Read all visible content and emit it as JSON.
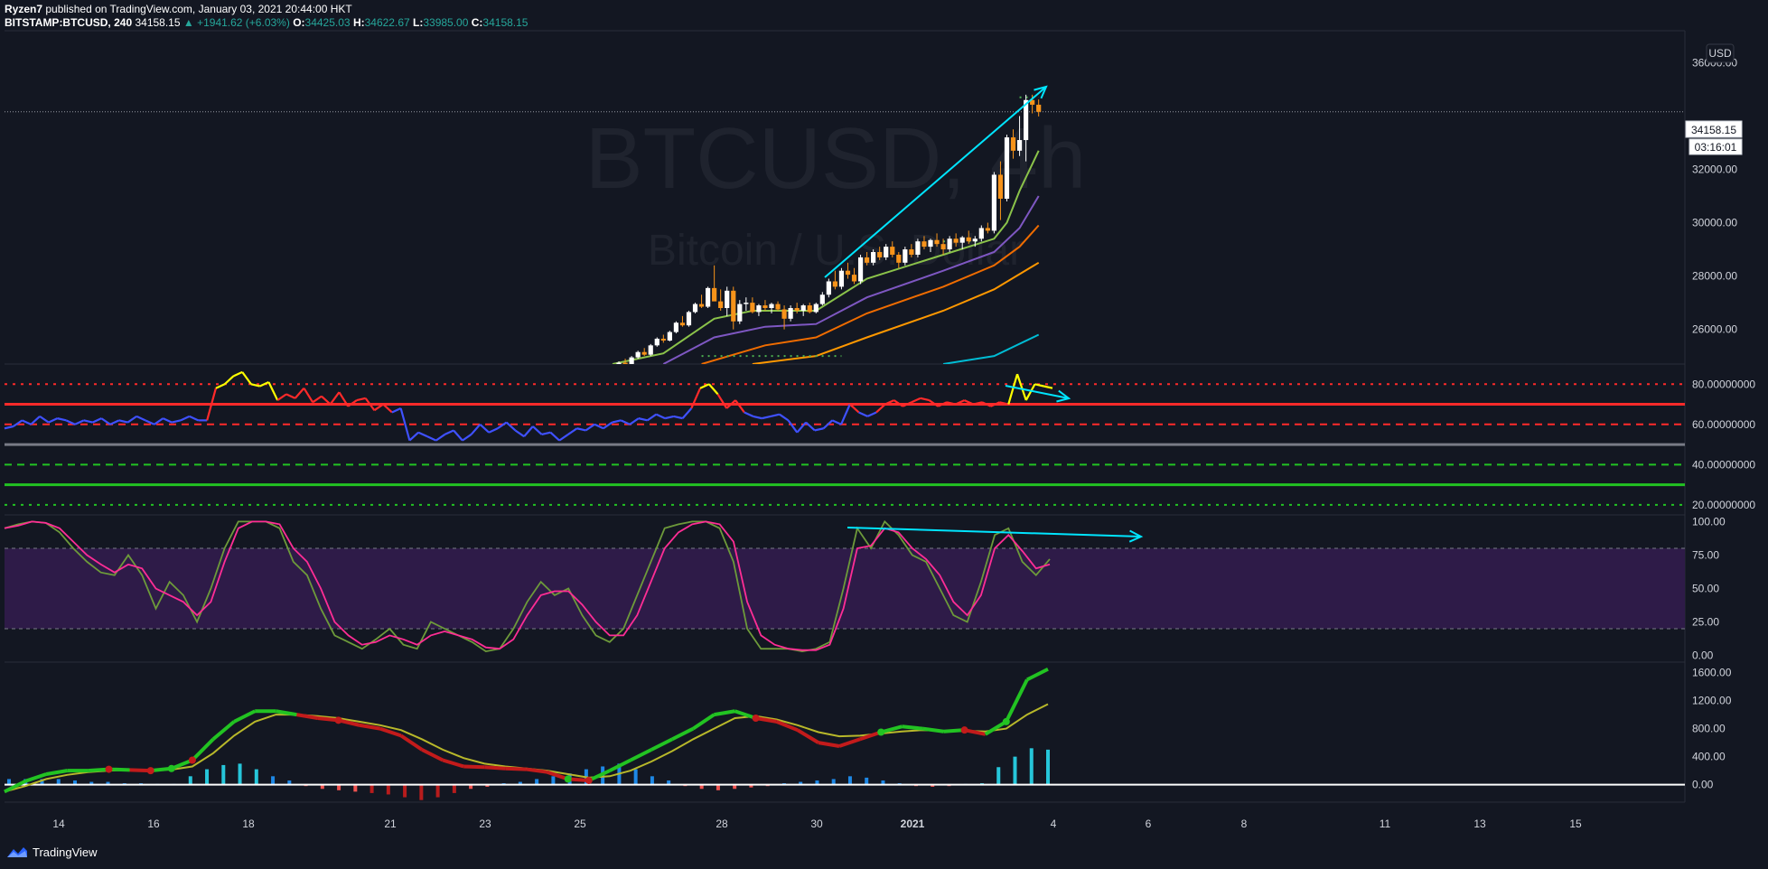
{
  "header": {
    "author": "Ryzen7",
    "published": "published on TradingView.com, January 03, 2021 20:44:00 HKT",
    "symbol": "BITSTAMP:BTCUSD, 240",
    "last": "34158.15",
    "change": "▲ +1941.62 (+6.03%)",
    "o_label": "O:",
    "o": "34425.03",
    "h_label": "H:",
    "h": "34622.67",
    "l_label": "L:",
    "l": "33985.00",
    "c_label": "C:",
    "c": "34158.15"
  },
  "watermark": {
    "symbol": "BTCUSD, 4h",
    "name": "Bitcoin / U.S. Dollar"
  },
  "currency_button": "USD",
  "price_tag": "34158.15",
  "countdown": "03:16:01",
  "footer": {
    "brand": "TradingView"
  },
  "colors": {
    "background": "#131722",
    "up_candle": "#ffffff",
    "down_candle": "#f7931a",
    "ema1": "#8bc34a",
    "ema2": "#7e57c2",
    "ema3": "#ef6c00",
    "ema4": "#ff9800",
    "ema5": "#00bcd4",
    "rsi_blue": "#3f51ff",
    "rsi_red": "#ff2a2a",
    "rsi_yellow": "#ffff00",
    "stoch_k": "#6d9a3a",
    "stoch_d": "#ff2d95",
    "stoch_band": "#2e1b48",
    "macd_green": "#22c322",
    "macd_red": "#c31b1b",
    "signal": "#b8b82a",
    "annotation": "#00e5ff"
  },
  "chart_data": [
    {
      "type": "candlestick",
      "title": "BITSTAMP:BTCUSD, 240",
      "x_ticks": [
        "14",
        "16",
        "18",
        "21",
        "23",
        "25",
        "28",
        "30",
        "2021",
        "4",
        "6",
        "8",
        "11",
        "13",
        "15"
      ],
      "y_ticks": [
        "26000.00",
        "28000.00",
        "30000.00",
        "32000.00",
        "34000.00",
        "36000.00"
      ],
      "ylim": [
        24700,
        37200
      ],
      "last_price": 34158.15,
      "bars": [
        [
          24500,
          24620,
          24350,
          24560
        ],
        [
          24560,
          24800,
          24500,
          24750
        ],
        [
          24750,
          24900,
          24600,
          24680
        ],
        [
          24680,
          25000,
          24650,
          24950
        ],
        [
          24950,
          25200,
          24900,
          25150
        ],
        [
          25150,
          25300,
          25000,
          25050
        ],
        [
          25050,
          25450,
          25000,
          25400
        ],
        [
          25400,
          25700,
          25350,
          25650
        ],
        [
          25650,
          25800,
          25500,
          25580
        ],
        [
          25580,
          25950,
          25550,
          25900
        ],
        [
          25900,
          26300,
          25850,
          26250
        ],
        [
          26250,
          26500,
          26100,
          26150
        ],
        [
          26150,
          26700,
          26100,
          26650
        ],
        [
          26650,
          27000,
          26600,
          26950
        ],
        [
          26950,
          27300,
          26800,
          26850
        ],
        [
          26850,
          27600,
          26800,
          27550
        ],
        [
          27550,
          28400,
          27300,
          27050
        ],
        [
          27050,
          27500,
          26700,
          26800
        ],
        [
          26800,
          27600,
          26500,
          27450
        ],
        [
          27450,
          27600,
          26000,
          26300
        ],
        [
          26300,
          27100,
          26200,
          26950
        ],
        [
          26950,
          27200,
          26700,
          27000
        ],
        [
          27000,
          27200,
          26600,
          26650
        ],
        [
          26650,
          26950,
          26500,
          26900
        ],
        [
          26900,
          27100,
          26700,
          26800
        ],
        [
          26800,
          27000,
          26600,
          26950
        ],
        [
          26950,
          27050,
          26700,
          26750
        ],
        [
          26750,
          26900,
          26000,
          26400
        ],
        [
          26400,
          26900,
          26300,
          26800
        ],
        [
          26800,
          27000,
          26600,
          26700
        ],
        [
          26700,
          26950,
          26500,
          26900
        ],
        [
          26900,
          27000,
          26600,
          26650
        ],
        [
          26650,
          27000,
          26600,
          26950
        ],
        [
          26950,
          27400,
          26900,
          27300
        ],
        [
          27300,
          27900,
          27200,
          27800
        ],
        [
          27800,
          28200,
          27500,
          27600
        ],
        [
          27600,
          28300,
          27500,
          28200
        ],
        [
          28200,
          28500,
          27900,
          28050
        ],
        [
          28050,
          28300,
          27700,
          27800
        ],
        [
          27800,
          28800,
          27700,
          28700
        ],
        [
          28700,
          28900,
          28400,
          28500
        ],
        [
          28500,
          29000,
          28400,
          28900
        ],
        [
          28900,
          29100,
          28600,
          28700
        ],
        [
          28700,
          29200,
          28600,
          29100
        ],
        [
          29100,
          29300,
          28700,
          28800
        ],
        [
          28800,
          28900,
          28300,
          28500
        ],
        [
          28500,
          29100,
          28400,
          29000
        ],
        [
          29000,
          29200,
          28700,
          28800
        ],
        [
          28800,
          29400,
          28700,
          29300
        ],
        [
          29300,
          29500,
          29000,
          29100
        ],
        [
          29100,
          29400,
          28900,
          29350
        ],
        [
          29350,
          29600,
          29100,
          29200
        ],
        [
          29200,
          29400,
          28800,
          29000
        ],
        [
          29000,
          29500,
          28900,
          29400
        ],
        [
          29400,
          29600,
          29100,
          29250
        ],
        [
          29250,
          29500,
          29000,
          29450
        ],
        [
          29450,
          29700,
          29200,
          29300
        ],
        [
          29300,
          29500,
          29100,
          29400
        ],
        [
          29400,
          29900,
          29300,
          29800
        ],
        [
          29800,
          30000,
          29600,
          29700
        ],
        [
          29700,
          31900,
          29600,
          31800
        ],
        [
          31800,
          32300,
          30100,
          30900
        ],
        [
          30900,
          33300,
          30800,
          33200
        ],
        [
          33200,
          33500,
          32400,
          32700
        ],
        [
          32700,
          34000,
          32500,
          33100
        ],
        [
          33100,
          34800,
          32300,
          34600
        ],
        [
          34600,
          34800,
          34100,
          34425
        ],
        [
          34425,
          34622,
          33985,
          34158
        ]
      ],
      "ema_lines": [
        {
          "name": "EMA 1",
          "color": "#8bc34a",
          "values": [
            [
              0,
              24700
            ],
            [
              8,
              25100
            ],
            [
              16,
              26400
            ],
            [
              22,
              26700
            ],
            [
              32,
              26700
            ],
            [
              40,
              27900
            ],
            [
              52,
              28800
            ],
            [
              60,
              29400
            ],
            [
              62,
              30000
            ],
            [
              64,
              31200
            ],
            [
              67,
              32700
            ]
          ]
        },
        {
          "name": "EMA 2",
          "color": "#7e57c2",
          "values": [
            [
              8,
              24700
            ],
            [
              16,
              25700
            ],
            [
              24,
              26100
            ],
            [
              32,
              26200
            ],
            [
              40,
              27200
            ],
            [
              52,
              28200
            ],
            [
              60,
              28900
            ],
            [
              64,
              29800
            ],
            [
              67,
              31000
            ]
          ]
        },
        {
          "name": "EMA 3",
          "color": "#ef6c00",
          "values": [
            [
              14,
              24700
            ],
            [
              24,
              25400
            ],
            [
              32,
              25700
            ],
            [
              40,
              26600
            ],
            [
              52,
              27600
            ],
            [
              60,
              28400
            ],
            [
              64,
              29100
            ],
            [
              67,
              29900
            ]
          ]
        },
        {
          "name": "EMA 4",
          "color": "#ff9800",
          "values": [
            [
              22,
              24700
            ],
            [
              32,
              25000
            ],
            [
              40,
              25700
            ],
            [
              52,
              26700
            ],
            [
              60,
              27500
            ],
            [
              67,
              28500
            ]
          ]
        },
        {
          "name": "EMA 5",
          "color": "#00bcd4",
          "values": [
            [
              52,
              24700
            ],
            [
              60,
              25000
            ],
            [
              67,
              25800
            ]
          ]
        }
      ],
      "dotted_levels": [
        {
          "price": 25000,
          "from": 14,
          "to": 36,
          "color": "#4caf50"
        },
        {
          "price": 29300,
          "from": 52,
          "to": 58,
          "color": "#4caf50"
        },
        {
          "price": 34700,
          "from": 64,
          "to": 67,
          "color": "#4caf50"
        }
      ]
    },
    {
      "type": "line",
      "title": "RSI",
      "y_ticks": [
        "20.00000000",
        "40.00000000",
        "60.00000000",
        "80.00000000"
      ],
      "ylim": [
        15,
        90
      ],
      "levels": [
        {
          "value": 80,
          "color": "#ff2a2a",
          "style": "dotted"
        },
        {
          "value": 70,
          "color": "#ff2a2a",
          "style": "solid"
        },
        {
          "value": 60,
          "color": "#ff2a2a",
          "style": "dashed"
        },
        {
          "value": 50,
          "color": "#787b86",
          "style": "solid"
        },
        {
          "value": 40,
          "color": "#22c322",
          "style": "dashed"
        },
        {
          "value": 30,
          "color": "#22c322",
          "style": "solid"
        },
        {
          "value": 20,
          "color": "#22c322",
          "style": "dotted"
        }
      ],
      "values": [
        58,
        59,
        62,
        60,
        64,
        61,
        63,
        62,
        60,
        62,
        61,
        63,
        60,
        62,
        61,
        64,
        62,
        60,
        63,
        61,
        62,
        64,
        62,
        62,
        78,
        80,
        84,
        86,
        80,
        79,
        81,
        72,
        75,
        73,
        78,
        71,
        74,
        70,
        76,
        69,
        72,
        73,
        67,
        70,
        66,
        68,
        52,
        56,
        54,
        52,
        55,
        57,
        52,
        55,
        60,
        56,
        58,
        61,
        57,
        54,
        59,
        55,
        56,
        52,
        55,
        58,
        57,
        60,
        58,
        61,
        62,
        60,
        63,
        62,
        65,
        63,
        64,
        63,
        68,
        78,
        80,
        75,
        68,
        72,
        66,
        64,
        63,
        64,
        65,
        62,
        56,
        61,
        57,
        58,
        62,
        60,
        70,
        66,
        64,
        66,
        70,
        72,
        69,
        71,
        73,
        72,
        69,
        71,
        70,
        72,
        70,
        71,
        69,
        71,
        70,
        85,
        72,
        80,
        79,
        78
      ]
    },
    {
      "type": "line",
      "title": "Stochastic RSI",
      "y_ticks": [
        "0.00",
        "25.00",
        "50.00",
        "75.00",
        "100.00"
      ],
      "ylim": [
        -5,
        105
      ],
      "band": [
        20,
        80
      ],
      "series": [
        {
          "color": "#6d9a3a",
          "values": [
            95,
            98,
            100,
            99,
            92,
            80,
            70,
            62,
            60,
            75,
            60,
            35,
            55,
            45,
            25,
            50,
            80,
            100,
            100,
            100,
            95,
            70,
            60,
            35,
            15,
            10,
            5,
            12,
            20,
            8,
            5,
            25,
            20,
            15,
            10,
            3,
            5,
            20,
            40,
            55,
            45,
            50,
            30,
            15,
            10,
            20,
            45,
            70,
            95,
            98,
            100,
            100,
            95,
            70,
            20,
            5,
            5,
            5,
            3,
            5,
            10,
            50,
            95,
            80,
            100,
            90,
            75,
            70,
            50,
            30,
            25,
            55,
            90,
            95,
            70,
            60,
            72
          ]
        },
        {
          "color": "#ff2d95",
          "values": [
            95,
            97,
            100,
            99,
            95,
            85,
            75,
            68,
            62,
            68,
            65,
            50,
            45,
            40,
            30,
            40,
            70,
            95,
            100,
            100,
            98,
            80,
            70,
            50,
            25,
            15,
            8,
            10,
            15,
            12,
            8,
            15,
            18,
            15,
            12,
            6,
            5,
            12,
            30,
            45,
            48,
            48,
            38,
            25,
            15,
            15,
            30,
            55,
            80,
            92,
            98,
            100,
            98,
            85,
            40,
            15,
            8,
            5,
            4,
            4,
            8,
            35,
            80,
            82,
            95,
            92,
            80,
            72,
            60,
            40,
            30,
            45,
            80,
            90,
            78,
            65,
            68
          ]
        }
      ]
    },
    {
      "type": "bar",
      "title": "MACD",
      "y_ticks": [
        "0.00",
        "400.00",
        "800.00",
        "1200.00",
        "1600.00"
      ],
      "ylim": [
        -250,
        1750
      ],
      "macd": [
        -100,
        50,
        150,
        200,
        200,
        220,
        210,
        200,
        230,
        350,
        650,
        900,
        1050,
        1050,
        1000,
        950,
        920,
        850,
        800,
        700,
        500,
        350,
        260,
        250,
        230,
        220,
        180,
        80,
        60,
        200,
        350,
        500,
        650,
        800,
        1000,
        1050,
        950,
        900,
        780,
        600,
        550,
        650,
        750,
        830,
        800,
        760,
        780,
        720,
        900,
        1500,
        1650
      ],
      "signal": [
        -100,
        -20,
        80,
        140,
        180,
        200,
        210,
        210,
        215,
        260,
        450,
        700,
        900,
        1000,
        1000,
        980,
        950,
        900,
        850,
        780,
        650,
        500,
        380,
        300,
        260,
        230,
        200,
        150,
        100,
        120,
        200,
        330,
        480,
        650,
        800,
        950,
        980,
        930,
        850,
        750,
        690,
        700,
        730,
        760,
        780,
        770,
        770,
        760,
        800,
        1000,
        1150
      ],
      "histogram": [
        80,
        80,
        80,
        80,
        60,
        40,
        40,
        20,
        20,
        10,
        10,
        120,
        220,
        280,
        300,
        220,
        120,
        60,
        -20,
        -60,
        -80,
        -100,
        -120,
        -140,
        -180,
        -220,
        -180,
        -120,
        -60,
        -30,
        20,
        40,
        80,
        120,
        160,
        220,
        260,
        300,
        220,
        120,
        60,
        -20,
        -60,
        -80,
        -60,
        -40,
        -20,
        20,
        40,
        60,
        80,
        120,
        100,
        60,
        20,
        -20,
        -30,
        -20,
        10,
        20,
        250,
        400,
        520,
        500
      ]
    }
  ]
}
